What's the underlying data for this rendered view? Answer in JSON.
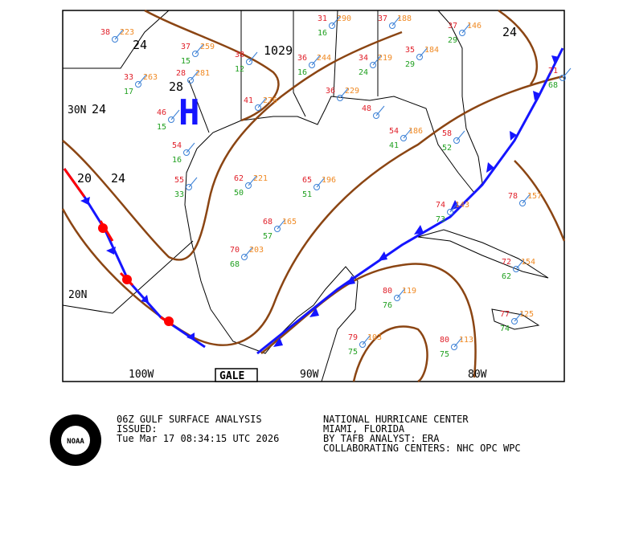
{
  "map": {
    "title_lines": [
      "06Z GULF SURFACE ANALYSIS",
      "ISSUED:",
      " Tue Mar 17 08:34:15 UTC 2026"
    ],
    "center_lines": [
      "NATIONAL HURRICANE CENTER",
      "MIAMI, FLORIDA",
      "BY TAFB ANALYST: ERA",
      "COLLABORATING CENTERS: NHC OPC WPC"
    ],
    "logo": "NOAA",
    "lat_labels": [
      "30N",
      "20N"
    ],
    "lon_labels": [
      "100W",
      "90W",
      "80W"
    ],
    "isobar_labels": [
      "24",
      "24",
      "24",
      "20",
      "24",
      "1029"
    ],
    "high": "H",
    "high_value": "28",
    "gale": "GALE",
    "stations": [
      {
        "temp": 38,
        "pressure": 223
      },
      {
        "temp": 37,
        "pressure": 259,
        "dew": 15
      },
      {
        "temp": 33,
        "pressure": 263,
        "dew": 17
      },
      {
        "temp": 28,
        "pressure": 281
      },
      {
        "temp": 38,
        "dew": 12
      },
      {
        "temp": 31,
        "pressure": 290,
        "dew": 16
      },
      {
        "temp": 37,
        "pressure": 188
      },
      {
        "temp": 37,
        "pressure": 146,
        "dew": 29
      },
      {
        "temp": 36,
        "pressure": 244,
        "dew": 16
      },
      {
        "temp": 34,
        "pressure": 219,
        "dew": 24
      },
      {
        "temp": 35,
        "pressure": 184,
        "dew": 29
      },
      {
        "temp": 46,
        "dew": 15
      },
      {
        "temp": 41,
        "pressure": 276
      },
      {
        "temp": 36,
        "pressure": 229
      },
      {
        "temp": 48
      },
      {
        "temp": 54,
        "pressure": 186,
        "dew": 41
      },
      {
        "temp": 58,
        "dew": 52
      },
      {
        "temp": 54,
        "dew": 16
      },
      {
        "temp": 62,
        "pressure": 221,
        "dew": 50
      },
      {
        "temp": 65,
        "pressure": 196,
        "dew": 51
      },
      {
        "temp": 55,
        "dew": 33
      },
      {
        "temp": 68,
        "pressure": 165,
        "dew": 57
      },
      {
        "temp": 70,
        "pressure": 203,
        "dew": 68
      },
      {
        "temp": 74,
        "pressure": 143,
        "dew": 73
      },
      {
        "temp": 78,
        "pressure": 157
      },
      {
        "temp": 72,
        "pressure": 154,
        "dew": 62
      },
      {
        "temp": 80,
        "pressure": 119,
        "dew": 76
      },
      {
        "temp": 79,
        "pressure": 103,
        "dew": 75
      },
      {
        "temp": 80,
        "pressure": 113,
        "dew": 75
      },
      {
        "temp": 77,
        "pressure": 125,
        "dew": 74
      },
      {
        "temp": 71,
        "dew": 68
      }
    ]
  }
}
